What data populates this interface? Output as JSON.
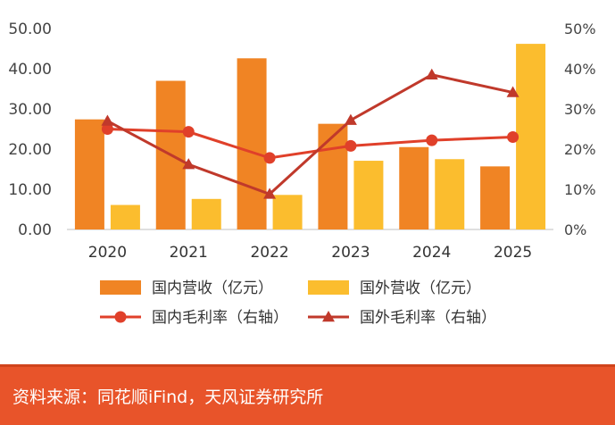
{
  "colors": {
    "domestic_revenue": "#f08424",
    "foreign_revenue": "#fbbd2e",
    "domestic_margin": "#e0402a",
    "foreign_margin": "#c0392b",
    "footer_bg": "#e8542a",
    "axis_text": "#444444"
  },
  "chart_data": {
    "type": "bar",
    "categories": [
      "2020",
      "2021",
      "2022",
      "2023",
      "2024",
      "2025"
    ],
    "y_left": {
      "ylim": [
        0,
        50
      ],
      "ticks": [
        "0.00",
        "10.00",
        "20.00",
        "30.00",
        "40.00",
        "50.00"
      ]
    },
    "y_right": {
      "ylim": [
        0,
        0.5
      ],
      "ticks": [
        "0%",
        "10%",
        "20%",
        "30%",
        "40%",
        "50%"
      ]
    },
    "series": [
      {
        "name": "国内营收（亿元）",
        "kind": "bar",
        "axis": "left",
        "values": [
          27.4,
          37.0,
          42.6,
          26.3,
          20.5,
          15.7
        ]
      },
      {
        "name": "国外营收（亿元）",
        "kind": "bar",
        "axis": "left",
        "values": [
          6.1,
          7.6,
          8.6,
          17.1,
          17.5,
          46.2
        ]
      },
      {
        "name": "国内毛利率（右轴）",
        "kind": "line-circle",
        "axis": "right",
        "values": [
          0.25,
          0.243,
          0.178,
          0.208,
          0.222,
          0.23
        ]
      },
      {
        "name": "国外毛利率（右轴）",
        "kind": "line-triangle",
        "axis": "right",
        "values": [
          0.27,
          0.162,
          0.088,
          0.272,
          0.385,
          0.341
        ]
      }
    ],
    "legend_position": "bottom",
    "grid": false
  },
  "footer": {
    "text": "资料来源：同花顺iFind，天风证券研究所"
  }
}
